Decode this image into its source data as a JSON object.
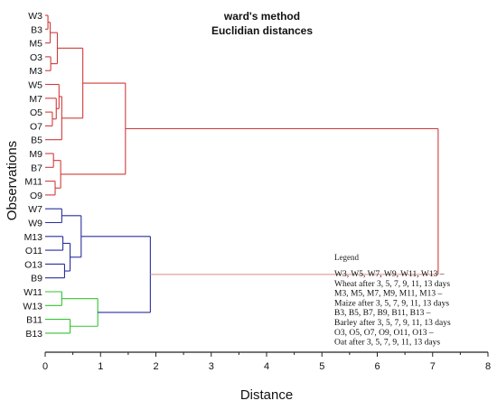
{
  "chart_data": {
    "type": "dendrogram",
    "title": "ward's method",
    "subtitle": "Euclidian distances",
    "xlabel": "Distance",
    "ylabel": "Observations",
    "xlim": [
      0,
      8
    ],
    "x_ticks": [
      0,
      1,
      2,
      3,
      4,
      5,
      6,
      7,
      8
    ],
    "leaves": [
      "W3",
      "B3",
      "M5",
      "O3",
      "M3",
      "W5",
      "M7",
      "O5",
      "O7",
      "B5",
      "M9",
      "B7",
      "M11",
      "O9",
      "W7",
      "W9",
      "M13",
      "O11",
      "O13",
      "B9",
      "W11",
      "W13",
      "B11",
      "B13"
    ],
    "colors": {
      "red": "#d13b3b",
      "red_light": "#d98a8a",
      "blue": "#2a2f9e",
      "blue_light": "#8a8fc8",
      "green": "#35c235",
      "green_light": "#8ad88a"
    },
    "merges": [
      {
        "id": "c1",
        "children": [
          "W3",
          "B3"
        ],
        "height": 0.05,
        "color": "red"
      },
      {
        "id": "c2",
        "children": [
          "c1",
          "M5"
        ],
        "height": 0.09,
        "color": "red"
      },
      {
        "id": "c3",
        "children": [
          "O3",
          "M3"
        ],
        "height": 0.1,
        "color": "red"
      },
      {
        "id": "c4",
        "children": [
          "c2",
          "c3"
        ],
        "height": 0.22,
        "color": "red"
      },
      {
        "id": "c5",
        "children": [
          "O5",
          "O7"
        ],
        "height": 0.13,
        "color": "red"
      },
      {
        "id": "c6",
        "children": [
          "M7",
          "c5"
        ],
        "height": 0.2,
        "color": "red"
      },
      {
        "id": "c7",
        "children": [
          "W5",
          "c6"
        ],
        "height": 0.25,
        "color": "red"
      },
      {
        "id": "c8",
        "children": [
          "c7",
          "B5"
        ],
        "height": 0.3,
        "color": "red"
      },
      {
        "id": "c9",
        "children": [
          "c4",
          "c8"
        ],
        "height": 0.68,
        "color": "red"
      },
      {
        "id": "c10",
        "children": [
          "M9",
          "B7"
        ],
        "height": 0.15,
        "color": "red"
      },
      {
        "id": "c11",
        "children": [
          "M11",
          "O9"
        ],
        "height": 0.18,
        "color": "red"
      },
      {
        "id": "c12",
        "children": [
          "c10",
          "c11"
        ],
        "height": 0.28,
        "color": "red"
      },
      {
        "id": "c13",
        "children": [
          "c9",
          "c12"
        ],
        "height": 1.45,
        "color": "red"
      },
      {
        "id": "c14",
        "children": [
          "W7",
          "W9"
        ],
        "height": 0.3,
        "color": "blue"
      },
      {
        "id": "c15",
        "children": [
          "M13",
          "O11"
        ],
        "height": 0.32,
        "color": "blue"
      },
      {
        "id": "c16",
        "children": [
          "O13",
          "B9"
        ],
        "height": 0.35,
        "color": "blue"
      },
      {
        "id": "c17",
        "children": [
          "c15",
          "c16"
        ],
        "height": 0.45,
        "color": "blue"
      },
      {
        "id": "c18",
        "children": [
          "c14",
          "c17"
        ],
        "height": 0.65,
        "color": "blue"
      },
      {
        "id": "c19",
        "children": [
          "W11",
          "W13"
        ],
        "height": 0.3,
        "color": "green"
      },
      {
        "id": "c20",
        "children": [
          "B11",
          "B13"
        ],
        "height": 0.45,
        "color": "green"
      },
      {
        "id": "c21",
        "children": [
          "c19",
          "c20"
        ],
        "height": 0.95,
        "color": "green"
      },
      {
        "id": "c22",
        "children": [
          "c18",
          "c21"
        ],
        "height": 1.9,
        "color": "blue"
      },
      {
        "id": "c23",
        "children": [
          "c13",
          "c22"
        ],
        "height": 7.1,
        "color": "red"
      }
    ],
    "legend": {
      "title": "Legend",
      "lines": [
        "W3, W5, W7, W9, W11, W13 –",
        "Wheat after 3, 5, 7, 9, 11, 13 days",
        "M3, M5, M7, M9, M11, M13 –",
        "Maize after 3, 5, 7, 9, 11, 13 days",
        "B3, B5, B7, B9, B11, B13 –",
        "Barley after 3, 5, 7, 9, 11, 13 days",
        "O3, O5, O7, O9, O11, O13 –",
        "Oat after 3, 5, 7, 9, 11, 13 days"
      ]
    }
  }
}
